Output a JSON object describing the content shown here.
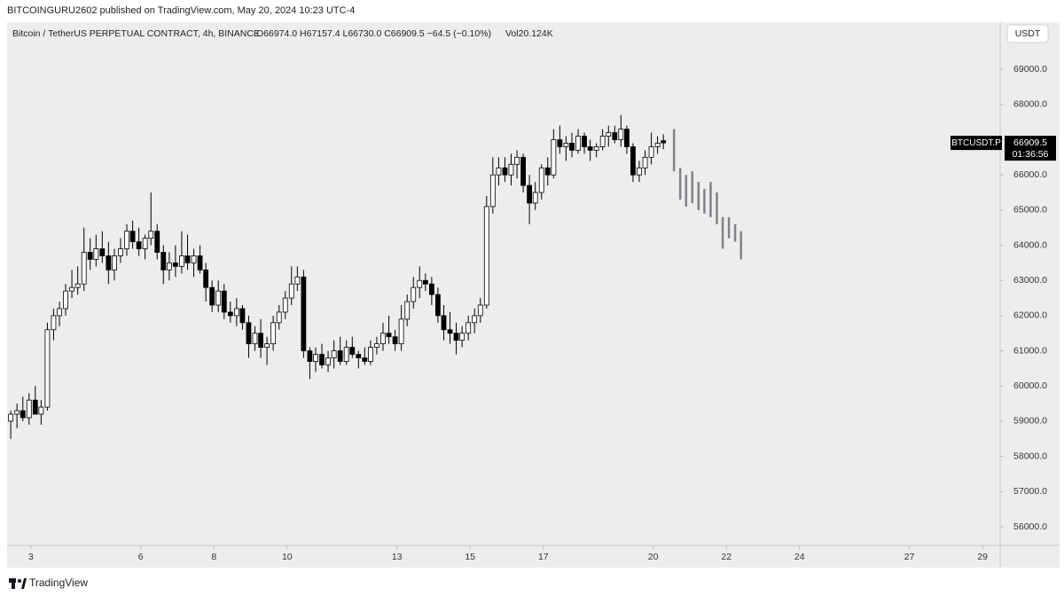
{
  "header": {
    "publisher": "BITCOINGURU2602 published on TradingView.com, May 20, 2024 10:23 UTC-4"
  },
  "footer": {
    "brand": "TradingView"
  },
  "chart_data": {
    "type": "candlestick",
    "symbol": "Bitcoin / TetherUS PERPETUAL CONTRACT, 4h, BINANCE",
    "ohlc_text": "O66974.0 H67157.4 L66730.0 C66909.5 −64.5 (−0.10%)",
    "volume_text": "Vol20.124K",
    "currency": "USDT",
    "ticker": "BTCUSDT.P",
    "countdown": "01:36:56",
    "up_color": "#ffffff",
    "down_color": "#000000",
    "projection_color": "#7f8288",
    "xlim": [
      2.35,
      29.48
    ],
    "ylim": [
      55470,
      70340
    ],
    "xticks": [
      3,
      6,
      8,
      10,
      13,
      15,
      17,
      20,
      22,
      24,
      27,
      29
    ],
    "yticks": [
      {
        "value": 56000,
        "label": "56000.0"
      },
      {
        "value": 57000,
        "label": "57000.0"
      },
      {
        "value": 58000,
        "label": "58000.0"
      },
      {
        "value": 59000,
        "label": "59000.0"
      },
      {
        "value": 60000,
        "label": "60000.0"
      },
      {
        "value": 61000,
        "label": "61000.0"
      },
      {
        "value": 62000,
        "label": "62000.0"
      },
      {
        "value": 63000,
        "label": "63000.0"
      },
      {
        "value": 64000,
        "label": "64000.0"
      },
      {
        "value": 65000,
        "label": "65000.0"
      },
      {
        "value": 66000,
        "label": "66000.0"
      },
      {
        "value": 67000,
        "label": "67000.0"
      },
      {
        "value": 68000,
        "label": "68000.0"
      },
      {
        "value": 69000,
        "label": "69000.0"
      }
    ],
    "x": [
      2.45,
      2.62,
      2.78,
      2.95,
      3.12,
      3.28,
      3.45,
      3.62,
      3.78,
      3.95,
      4.12,
      4.28,
      4.45,
      4.62,
      4.78,
      4.95,
      5.12,
      5.28,
      5.45,
      5.62,
      5.78,
      5.95,
      6.12,
      6.28,
      6.45,
      6.62,
      6.78,
      6.95,
      7.12,
      7.28,
      7.45,
      7.62,
      7.78,
      7.95,
      8.12,
      8.28,
      8.45,
      8.62,
      8.78,
      8.95,
      9.12,
      9.28,
      9.45,
      9.62,
      9.78,
      9.95,
      10.12,
      10.28,
      10.45,
      10.62,
      10.78,
      10.95,
      11.12,
      11.28,
      11.45,
      11.62,
      11.78,
      11.95,
      12.12,
      12.28,
      12.45,
      12.62,
      12.78,
      12.95,
      13.12,
      13.28,
      13.45,
      13.62,
      13.78,
      13.95,
      14.12,
      14.28,
      14.45,
      14.62,
      14.78,
      14.95,
      15.12,
      15.28,
      15.45,
      15.62,
      15.78,
      15.95,
      16.12,
      16.28,
      16.45,
      16.62,
      16.78,
      16.95,
      17.12,
      17.28,
      17.45,
      17.62,
      17.78,
      17.95,
      18.12,
      18.28,
      18.45,
      18.62,
      18.78,
      18.95,
      19.12,
      19.28,
      19.45,
      19.62,
      19.78,
      19.95,
      20.12,
      20.28
    ],
    "ohlc": [
      [
        59000,
        59300,
        58500,
        59200
      ],
      [
        59200,
        59500,
        58800,
        59300
      ],
      [
        59300,
        59700,
        59000,
        59100
      ],
      [
        59100,
        59800,
        58900,
        59600
      ],
      [
        59600,
        60000,
        59300,
        59200
      ],
      [
        59200,
        59600,
        58900,
        59400
      ],
      [
        59400,
        61800,
        59300,
        61600
      ],
      [
        61600,
        62200,
        61300,
        62000
      ],
      [
        62000,
        62400,
        61700,
        62200
      ],
      [
        62200,
        62900,
        62000,
        62700
      ],
      [
        62700,
        63300,
        62500,
        62800
      ],
      [
        62800,
        63400,
        62600,
        62900
      ],
      [
        62900,
        64500,
        62700,
        63800
      ],
      [
        63800,
        64200,
        63300,
        63600
      ],
      [
        63600,
        64300,
        63400,
        63900
      ],
      [
        63900,
        64400,
        63500,
        63700
      ],
      [
        63700,
        64100,
        62900,
        63300
      ],
      [
        63300,
        63900,
        63000,
        63700
      ],
      [
        63700,
        64200,
        63500,
        63900
      ],
      [
        63900,
        64600,
        63700,
        64400
      ],
      [
        64400,
        64700,
        63900,
        64100
      ],
      [
        64100,
        64500,
        63700,
        63900
      ],
      [
        63900,
        64300,
        63600,
        64200
      ],
      [
        64200,
        65500,
        64000,
        64400
      ],
      [
        64400,
        64600,
        63600,
        63800
      ],
      [
        63800,
        64000,
        62900,
        63300
      ],
      [
        63300,
        63800,
        63000,
        63500
      ],
      [
        63500,
        64000,
        63100,
        63400
      ],
      [
        63400,
        64400,
        63200,
        63700
      ],
      [
        63700,
        64300,
        63300,
        63500
      ],
      [
        63500,
        63900,
        63100,
        63700
      ],
      [
        63700,
        64000,
        63200,
        63300
      ],
      [
        63300,
        63500,
        62400,
        62800
      ],
      [
        62800,
        63000,
        62100,
        62300
      ],
      [
        62300,
        63000,
        62100,
        62700
      ],
      [
        62700,
        62900,
        61900,
        62100
      ],
      [
        62100,
        62400,
        61800,
        62000
      ],
      [
        62000,
        62500,
        61700,
        62200
      ],
      [
        62200,
        62300,
        61600,
        61800
      ],
      [
        61800,
        62000,
        60800,
        61200
      ],
      [
        61200,
        61700,
        61000,
        61500
      ],
      [
        61500,
        61900,
        60800,
        61100
      ],
      [
        61100,
        61400,
        60600,
        61200
      ],
      [
        61200,
        62000,
        61000,
        61800
      ],
      [
        61800,
        62300,
        61600,
        62100
      ],
      [
        62100,
        62700,
        61900,
        62500
      ],
      [
        62500,
        63400,
        62300,
        62900
      ],
      [
        62900,
        63400,
        62700,
        63100
      ],
      [
        63100,
        63300,
        60800,
        61000
      ],
      [
        61000,
        61100,
        60200,
        60700
      ],
      [
        60700,
        61100,
        60400,
        60900
      ],
      [
        60900,
        61200,
        60500,
        60600
      ],
      [
        60600,
        61000,
        60400,
        60800
      ],
      [
        60800,
        61300,
        60500,
        61000
      ],
      [
        61000,
        61400,
        60600,
        60700
      ],
      [
        60700,
        61300,
        60600,
        61100
      ],
      [
        61100,
        61400,
        60800,
        60900
      ],
      [
        60900,
        61000,
        60500,
        60800
      ],
      [
        60800,
        61100,
        60600,
        60700
      ],
      [
        60700,
        61300,
        60600,
        61100
      ],
      [
        61100,
        61400,
        60900,
        61200
      ],
      [
        61200,
        61800,
        61000,
        61500
      ],
      [
        61500,
        62000,
        61200,
        61400
      ],
      [
        61400,
        61600,
        61000,
        61200
      ],
      [
        61200,
        62300,
        61000,
        61900
      ],
      [
        61900,
        62600,
        61700,
        62400
      ],
      [
        62400,
        63100,
        62200,
        62800
      ],
      [
        62800,
        63400,
        62500,
        63000
      ],
      [
        63000,
        63200,
        62700,
        62900
      ],
      [
        62900,
        63100,
        62300,
        62600
      ],
      [
        62600,
        62800,
        61800,
        62000
      ],
      [
        62000,
        62300,
        61300,
        61600
      ],
      [
        61600,
        62100,
        61200,
        61500
      ],
      [
        61500,
        61800,
        60900,
        61300
      ],
      [
        61300,
        61700,
        61100,
        61500
      ],
      [
        61500,
        62000,
        61300,
        61800
      ],
      [
        61800,
        62200,
        61500,
        62000
      ],
      [
        62000,
        62500,
        61800,
        62300
      ],
      [
        62300,
        65400,
        62200,
        65100
      ],
      [
        65100,
        66500,
        64900,
        66000
      ],
      [
        66000,
        66500,
        65700,
        66200
      ],
      [
        66200,
        66500,
        65800,
        66000
      ],
      [
        66000,
        66600,
        65700,
        66300
      ],
      [
        66300,
        66700,
        65900,
        66500
      ],
      [
        66500,
        66600,
        65500,
        65700
      ],
      [
        65700,
        66000,
        64600,
        65200
      ],
      [
        65200,
        65800,
        65000,
        65500
      ],
      [
        65500,
        66300,
        65300,
        66200
      ],
      [
        66200,
        66500,
        65700,
        66000
      ],
      [
        66000,
        67300,
        65900,
        67000
      ],
      [
        67000,
        67400,
        66600,
        66800
      ],
      [
        66800,
        67100,
        66400,
        66900
      ],
      [
        66900,
        67200,
        66500,
        66700
      ],
      [
        66700,
        67300,
        66600,
        67100
      ],
      [
        67100,
        67200,
        66600,
        66800
      ],
      [
        66800,
        67000,
        66400,
        66700
      ],
      [
        66700,
        66900,
        66500,
        66800
      ],
      [
        66800,
        67300,
        66700,
        67100
      ],
      [
        67100,
        67400,
        66800,
        67200
      ],
      [
        67200,
        67400,
        66900,
        67000
      ],
      [
        67000,
        67700,
        66800,
        67300
      ],
      [
        67300,
        67400,
        66600,
        66800
      ],
      [
        66800,
        66900,
        65800,
        66000
      ],
      [
        66000,
        66400,
        65800,
        66200
      ],
      [
        66200,
        66700,
        66000,
        66500
      ],
      [
        66500,
        67200,
        66300,
        66800
      ],
      [
        66800,
        67100,
        66600,
        66900
      ],
      [
        66974,
        67157.4,
        66730,
        66909.5
      ]
    ],
    "projection": {
      "x": [
        20.57,
        20.74,
        20.9,
        21.07,
        21.24,
        21.4,
        21.57,
        21.74,
        21.9,
        22.07,
        22.24,
        22.4
      ],
      "high": [
        67300,
        66200,
        66000,
        66100,
        65800,
        65600,
        65800,
        65500,
        64800,
        64800,
        64600,
        64400
      ],
      "low": [
        66100,
        65300,
        65100,
        65200,
        65000,
        64900,
        64800,
        64600,
        63900,
        64200,
        64100,
        63600
      ]
    }
  }
}
